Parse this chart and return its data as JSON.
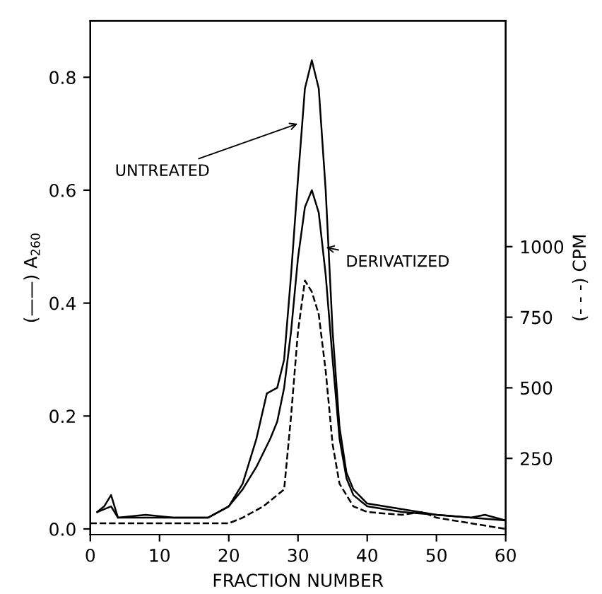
{
  "chart_data": {
    "type": "line",
    "xlabel": "FRACTION NUMBER",
    "ylabel": "(——) A$_{260}$",
    "y2label": "(- - -) CPM",
    "xlim": [
      0,
      60
    ],
    "xticks": [
      0,
      10,
      20,
      30,
      40,
      50,
      60
    ],
    "ylim": [
      -0.01,
      0.9
    ],
    "yticks": [
      {
        "value": 0,
        "label": "0.0"
      },
      {
        "value": 0.2,
        "label": "0.2"
      },
      {
        "value": 0.4,
        "label": "0.4"
      },
      {
        "value": 0.6,
        "label": "0.6"
      },
      {
        "value": 0.8,
        "label": "0.8"
      }
    ],
    "y2lim": [
      -20,
      1800
    ],
    "y2ticks": [
      250,
      500,
      750,
      1000
    ],
    "grid": false,
    "legend": false,
    "marker": "none",
    "series": [
      {
        "color": "#000000",
        "line_style": "solid",
        "x": [
          1,
          2,
          3,
          4,
          8,
          12,
          17,
          20,
          22,
          24,
          25.5,
          27,
          28,
          29,
          30,
          31,
          32,
          33,
          34,
          35,
          36,
          37,
          38,
          40,
          45,
          50,
          55,
          57,
          60
        ],
        "values": [
          0.03,
          0.04,
          0.06,
          0.02,
          0.025,
          0.02,
          0.02,
          0.04,
          0.08,
          0.16,
          0.24,
          0.25,
          0.3,
          0.45,
          0.62,
          0.78,
          0.83,
          0.78,
          0.6,
          0.35,
          0.18,
          0.1,
          0.07,
          0.045,
          0.035,
          0.025,
          0.02,
          0.025,
          0.015
        ]
      },
      {
        "color": "#000000",
        "line_style": "solid",
        "x": [
          1,
          3,
          4,
          8,
          12,
          17,
          20,
          22,
          24,
          26,
          27,
          28,
          29,
          30,
          31,
          32,
          33,
          34,
          35,
          36,
          37,
          38,
          40,
          45,
          50,
          55,
          60
        ],
        "values": [
          0.03,
          0.04,
          0.02,
          0.02,
          0.02,
          0.02,
          0.04,
          0.07,
          0.11,
          0.16,
          0.19,
          0.25,
          0.35,
          0.48,
          0.57,
          0.6,
          0.56,
          0.45,
          0.3,
          0.16,
          0.09,
          0.06,
          0.04,
          0.03,
          0.025,
          0.02,
          0.015
        ]
      },
      {
        "color": "#000000",
        "line_style": "dashed",
        "axis": "y2",
        "x": [
          0,
          5,
          10,
          15,
          20,
          22,
          25,
          28,
          29,
          30,
          31,
          32,
          33,
          34,
          35,
          36,
          38,
          40,
          45,
          48,
          50,
          55,
          60
        ],
        "values": [
          20,
          20,
          20,
          20,
          20,
          40,
          80,
          140,
          400,
          700,
          880,
          840,
          760,
          560,
          300,
          160,
          80,
          60,
          50,
          60,
          40,
          20,
          0
        ]
      }
    ],
    "annotations": [
      {
        "text": "UNTREATED",
        "x": 30.5,
        "y": 0.72
      },
      {
        "text": "DERIVATIZED",
        "x": 33.5,
        "y": 0.5
      }
    ]
  }
}
